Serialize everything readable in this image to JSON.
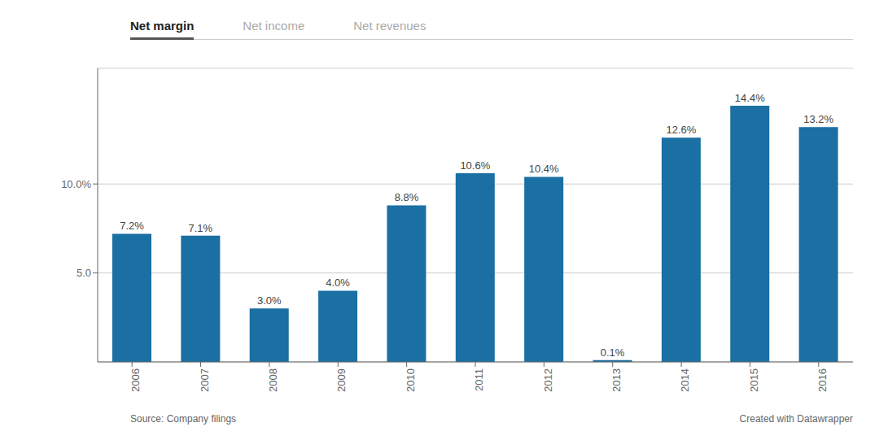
{
  "chart_data": {
    "type": "bar",
    "categories": [
      "2006",
      "2007",
      "2008",
      "2009",
      "2010",
      "2011",
      "2012",
      "2013",
      "2014",
      "2015",
      "2016"
    ],
    "values": [
      7.2,
      7.1,
      3.0,
      4.0,
      8.8,
      10.6,
      10.4,
      0.1,
      12.6,
      14.4,
      13.2
    ],
    "value_labels": [
      "7.2%",
      "7.1%",
      "3.0%",
      "4.0%",
      "8.8%",
      "10.6%",
      "10.4%",
      "0.1%",
      "12.6%",
      "14.4%",
      "13.2%"
    ],
    "color": "#1a6fa3",
    "ylim": [
      0,
      16.5
    ],
    "yticks": [
      {
        "value": 5,
        "label": "5.0"
      },
      {
        "value": 10,
        "label": "10.0%"
      }
    ],
    "grid": true,
    "data_labels": true,
    "annotations": [
      "Net margin",
      "Net income",
      "Net revenues",
      "Source: Company filings",
      "Created with Datawrapper"
    ]
  }
}
